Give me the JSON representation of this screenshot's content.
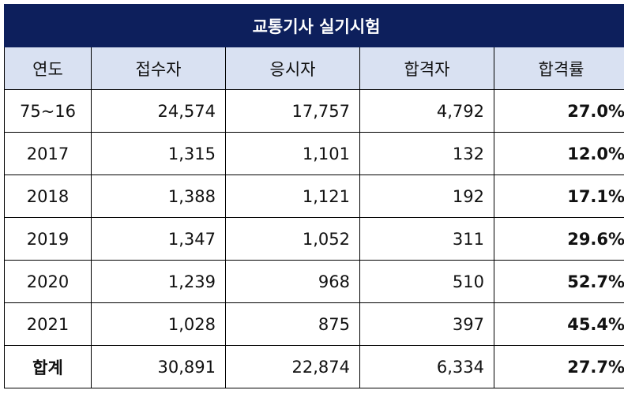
{
  "chart_data": {
    "type": "table",
    "title": "교통기사 실기시험",
    "columns": [
      "연도",
      "접수자",
      "응시자",
      "합격자",
      "합격률"
    ],
    "rows": [
      {
        "year": "75~16",
        "applicants": "24,574",
        "examinees": "17,757",
        "passed": "4,792",
        "rate": "27.0%"
      },
      {
        "year": "2017",
        "applicants": "1,315",
        "examinees": "1,101",
        "passed": "132",
        "rate": "12.0%"
      },
      {
        "year": "2018",
        "applicants": "1,388",
        "examinees": "1,121",
        "passed": "192",
        "rate": "17.1%"
      },
      {
        "year": "2019",
        "applicants": "1,347",
        "examinees": "1,052",
        "passed": "311",
        "rate": "29.6%"
      },
      {
        "year": "2020",
        "applicants": "1,239",
        "examinees": "968",
        "passed": "510",
        "rate": "52.7%"
      },
      {
        "year": "2021",
        "applicants": "1,028",
        "examinees": "875",
        "passed": "397",
        "rate": "45.4%"
      }
    ],
    "total": {
      "year": "합계",
      "applicants": "30,891",
      "examinees": "22,874",
      "passed": "6,334",
      "rate": "27.7%"
    }
  },
  "colors": {
    "title_background": "#0d1f5c",
    "header_background": "#d9e1f2"
  }
}
